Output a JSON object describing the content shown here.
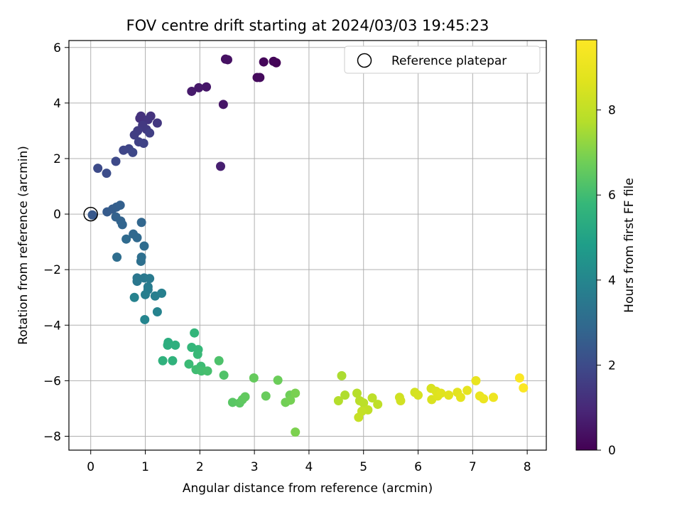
{
  "chart_data": {
    "type": "scatter",
    "title": "FOV centre drift starting at 2024/03/03 19:45:23",
    "xlabel": "Angular distance from reference (arcmin)",
    "ylabel": "Rotation from reference (arcmin)",
    "xlim": [
      -0.4,
      8.35
    ],
    "ylim": [
      -8.5,
      6.25
    ],
    "xticks": [
      "0",
      "1",
      "2",
      "3",
      "4",
      "5",
      "6",
      "7",
      "8"
    ],
    "yticks": [
      "−8",
      "−6",
      "−4",
      "−2",
      "0",
      "2",
      "4",
      "6"
    ],
    "grid": true,
    "legend": {
      "position": "top-right",
      "label": "Reference platepar"
    },
    "reference_point": {
      "x": 0,
      "y": 0
    },
    "colorbar": {
      "label": "Hours from first FF file",
      "colormap": "viridis",
      "range": [
        0,
        9.65
      ],
      "ticks": [
        "0",
        "2",
        "4",
        "6",
        "8"
      ]
    },
    "series": [
      {
        "color_by": "hours",
        "points": [
          {
            "x": 3.4,
            "y": 5.45,
            "c": 0.05
          },
          {
            "x": 3.35,
            "y": 5.5,
            "c": 0.1
          },
          {
            "x": 3.17,
            "y": 5.48,
            "c": 0.15
          },
          {
            "x": 3.05,
            "y": 4.92,
            "c": 0.2
          },
          {
            "x": 3.1,
            "y": 4.92,
            "c": 0.25
          },
          {
            "x": 2.47,
            "y": 5.58,
            "c": 0.35
          },
          {
            "x": 2.51,
            "y": 5.56,
            "c": 0.4
          },
          {
            "x": 2.43,
            "y": 3.95,
            "c": 0.5
          },
          {
            "x": 2.12,
            "y": 4.58,
            "c": 0.55
          },
          {
            "x": 1.98,
            "y": 4.55,
            "c": 0.6
          },
          {
            "x": 1.85,
            "y": 4.42,
            "c": 0.65
          },
          {
            "x": 2.38,
            "y": 1.72,
            "c": 0.75
          },
          {
            "x": 0.9,
            "y": 3.45,
            "c": 1.2
          },
          {
            "x": 0.92,
            "y": 3.53,
            "c": 1.25
          },
          {
            "x": 1.1,
            "y": 3.53,
            "c": 1.3
          },
          {
            "x": 1.05,
            "y": 3.4,
            "c": 1.35
          },
          {
            "x": 1.22,
            "y": 3.28,
            "c": 1.4
          },
          {
            "x": 0.95,
            "y": 3.2,
            "c": 1.45
          },
          {
            "x": 1.02,
            "y": 3.05,
            "c": 1.5
          },
          {
            "x": 0.86,
            "y": 3.0,
            "c": 1.55
          },
          {
            "x": 0.8,
            "y": 2.85,
            "c": 1.6
          },
          {
            "x": 1.08,
            "y": 2.92,
            "c": 1.65
          },
          {
            "x": 0.88,
            "y": 2.6,
            "c": 1.7
          },
          {
            "x": 0.97,
            "y": 2.55,
            "c": 1.75
          },
          {
            "x": 0.7,
            "y": 2.35,
            "c": 1.8
          },
          {
            "x": 0.6,
            "y": 2.3,
            "c": 1.85
          },
          {
            "x": 0.77,
            "y": 2.22,
            "c": 1.9
          },
          {
            "x": 0.46,
            "y": 1.9,
            "c": 1.95
          },
          {
            "x": 0.13,
            "y": 1.65,
            "c": 2.0
          },
          {
            "x": 0.29,
            "y": 1.47,
            "c": 2.05
          },
          {
            "x": 0.03,
            "y": -0.03,
            "c": 2.4
          },
          {
            "x": 0.3,
            "y": 0.08,
            "c": 2.5
          },
          {
            "x": 0.4,
            "y": 0.18,
            "c": 2.55
          },
          {
            "x": 0.47,
            "y": 0.25,
            "c": 2.6
          },
          {
            "x": 0.54,
            "y": 0.32,
            "c": 2.65
          },
          {
            "x": 0.46,
            "y": -0.1,
            "c": 2.7
          },
          {
            "x": 0.55,
            "y": -0.25,
            "c": 2.75
          },
          {
            "x": 0.58,
            "y": -0.38,
            "c": 2.8
          },
          {
            "x": 0.93,
            "y": -0.3,
            "c": 2.85
          },
          {
            "x": 0.78,
            "y": -0.72,
            "c": 2.9
          },
          {
            "x": 0.85,
            "y": -0.85,
            "c": 2.95
          },
          {
            "x": 0.65,
            "y": -0.9,
            "c": 3.0
          },
          {
            "x": 0.98,
            "y": -1.15,
            "c": 3.05
          },
          {
            "x": 0.48,
            "y": -1.55,
            "c": 3.1
          },
          {
            "x": 0.93,
            "y": -1.55,
            "c": 3.15
          },
          {
            "x": 0.92,
            "y": -1.7,
            "c": 3.2
          },
          {
            "x": 0.85,
            "y": -2.3,
            "c": 3.4
          },
          {
            "x": 0.85,
            "y": -2.42,
            "c": 3.45
          },
          {
            "x": 0.98,
            "y": -2.3,
            "c": 3.5
          },
          {
            "x": 1.08,
            "y": -2.32,
            "c": 3.55
          },
          {
            "x": 1.05,
            "y": -2.62,
            "c": 3.6
          },
          {
            "x": 1.05,
            "y": -2.72,
            "c": 3.65
          },
          {
            "x": 1.0,
            "y": -2.9,
            "c": 3.7
          },
          {
            "x": 1.18,
            "y": -2.95,
            "c": 3.75
          },
          {
            "x": 1.3,
            "y": -2.85,
            "c": 3.8
          },
          {
            "x": 0.8,
            "y": -3.0,
            "c": 3.85
          },
          {
            "x": 1.22,
            "y": -3.52,
            "c": 3.9
          },
          {
            "x": 0.99,
            "y": -3.8,
            "c": 3.95
          },
          {
            "x": 1.42,
            "y": -4.62,
            "c": 5.4
          },
          {
            "x": 1.41,
            "y": -4.72,
            "c": 5.45
          },
          {
            "x": 1.55,
            "y": -4.72,
            "c": 5.5
          },
          {
            "x": 1.32,
            "y": -5.28,
            "c": 5.55
          },
          {
            "x": 1.5,
            "y": -5.28,
            "c": 5.6
          },
          {
            "x": 1.9,
            "y": -4.28,
            "c": 5.7
          },
          {
            "x": 1.85,
            "y": -4.8,
            "c": 5.75
          },
          {
            "x": 1.97,
            "y": -4.88,
            "c": 5.8
          },
          {
            "x": 1.96,
            "y": -5.05,
            "c": 5.85
          },
          {
            "x": 1.8,
            "y": -5.4,
            "c": 5.9
          },
          {
            "x": 2.02,
            "y": -5.48,
            "c": 5.95
          },
          {
            "x": 1.93,
            "y": -5.6,
            "c": 6.0
          },
          {
            "x": 2.03,
            "y": -5.65,
            "c": 6.05
          },
          {
            "x": 2.14,
            "y": -5.65,
            "c": 6.1
          },
          {
            "x": 2.35,
            "y": -5.28,
            "c": 6.2
          },
          {
            "x": 2.44,
            "y": -5.8,
            "c": 6.25
          },
          {
            "x": 2.6,
            "y": -6.78,
            "c": 6.4
          },
          {
            "x": 2.73,
            "y": -6.8,
            "c": 6.45
          },
          {
            "x": 2.78,
            "y": -6.68,
            "c": 6.5
          },
          {
            "x": 2.83,
            "y": -6.58,
            "c": 6.55
          },
          {
            "x": 2.99,
            "y": -5.9,
            "c": 6.6
          },
          {
            "x": 3.21,
            "y": -6.55,
            "c": 6.65
          },
          {
            "x": 3.43,
            "y": -5.98,
            "c": 6.7
          },
          {
            "x": 3.65,
            "y": -6.52,
            "c": 6.75
          },
          {
            "x": 3.57,
            "y": -6.78,
            "c": 6.8
          },
          {
            "x": 3.66,
            "y": -6.7,
            "c": 6.85
          },
          {
            "x": 3.75,
            "y": -6.45,
            "c": 6.9
          },
          {
            "x": 3.75,
            "y": -7.85,
            "c": 6.95
          },
          {
            "x": 4.6,
            "y": -5.82,
            "c": 7.6
          },
          {
            "x": 4.66,
            "y": -6.52,
            "c": 7.65
          },
          {
            "x": 4.54,
            "y": -6.72,
            "c": 7.7
          },
          {
            "x": 4.88,
            "y": -6.45,
            "c": 7.75
          },
          {
            "x": 4.93,
            "y": -6.72,
            "c": 7.8
          },
          {
            "x": 5.0,
            "y": -6.8,
            "c": 7.85
          },
          {
            "x": 5.16,
            "y": -6.62,
            "c": 7.9
          },
          {
            "x": 5.26,
            "y": -6.85,
            "c": 7.95
          },
          {
            "x": 5.08,
            "y": -7.05,
            "c": 8.0
          },
          {
            "x": 4.97,
            "y": -7.1,
            "c": 8.05
          },
          {
            "x": 4.91,
            "y": -7.32,
            "c": 8.1
          },
          {
            "x": 5.66,
            "y": -6.6,
            "c": 8.3
          },
          {
            "x": 5.68,
            "y": -6.72,
            "c": 8.35
          },
          {
            "x": 5.94,
            "y": -6.42,
            "c": 8.4
          },
          {
            "x": 6.0,
            "y": -6.52,
            "c": 8.45
          },
          {
            "x": 6.24,
            "y": -6.28,
            "c": 8.5
          },
          {
            "x": 6.25,
            "y": -6.68,
            "c": 8.55
          },
          {
            "x": 6.33,
            "y": -6.38,
            "c": 8.6
          },
          {
            "x": 6.36,
            "y": -6.55,
            "c": 8.65
          },
          {
            "x": 6.42,
            "y": -6.45,
            "c": 8.7
          },
          {
            "x": 6.56,
            "y": -6.52,
            "c": 8.75
          },
          {
            "x": 6.72,
            "y": -6.42,
            "c": 8.8
          },
          {
            "x": 6.78,
            "y": -6.6,
            "c": 8.85
          },
          {
            "x": 6.9,
            "y": -6.35,
            "c": 8.9
          },
          {
            "x": 7.06,
            "y": -6.0,
            "c": 9.0
          },
          {
            "x": 7.13,
            "y": -6.55,
            "c": 9.05
          },
          {
            "x": 7.2,
            "y": -6.65,
            "c": 9.1
          },
          {
            "x": 7.38,
            "y": -6.6,
            "c": 9.15
          },
          {
            "x": 7.86,
            "y": -5.9,
            "c": 9.55
          },
          {
            "x": 7.93,
            "y": -6.26,
            "c": 9.6
          }
        ]
      }
    ]
  }
}
